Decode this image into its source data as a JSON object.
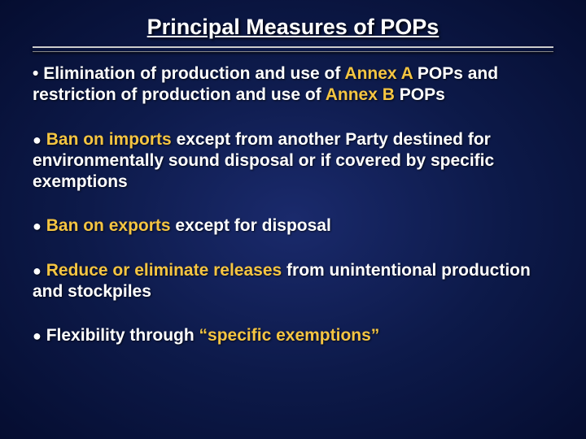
{
  "slide": {
    "title": "Principal Measures of POPs",
    "background_inner": "#1a2a6c",
    "background_mid": "#0d1a4a",
    "background_outer": "#050d30",
    "text_color": "#ffffff",
    "highlight_color": "#f5c542",
    "title_fontsize": 27,
    "body_fontsize": 21,
    "divider_color_top": "#cccccc",
    "divider_color_bottom": "#888888",
    "bullets": [
      {
        "lead_char": "•",
        "parts": [
          {
            "t": " Elimination of production and use of ",
            "hl": false
          },
          {
            "t": "Annex A",
            "hl": true
          },
          {
            "t": " POPs and restriction of production and use of ",
            "hl": false
          },
          {
            "t": "Annex B",
            "hl": true
          },
          {
            "t": " POPs",
            "hl": false
          }
        ]
      },
      {
        "lead_char": "●",
        "parts": [
          {
            "t": " ",
            "hl": false
          },
          {
            "t": "Ban on imports",
            "hl": true
          },
          {
            "t": " except from another Party destined for environmentally sound disposal or if covered by specific exemptions",
            "hl": false
          }
        ]
      },
      {
        "lead_char": "●",
        "parts": [
          {
            "t": " ",
            "hl": false
          },
          {
            "t": "Ban on exports",
            "hl": true
          },
          {
            "t": " except for disposal",
            "hl": false
          }
        ]
      },
      {
        "lead_char": "●",
        "parts": [
          {
            "t": " ",
            "hl": false
          },
          {
            "t": "Reduce or eliminate releases",
            "hl": true
          },
          {
            "t": " from unintentional production and stockpiles",
            "hl": false
          }
        ]
      },
      {
        "lead_char": "●",
        "parts": [
          {
            "t": " Flexibility through ",
            "hl": false
          },
          {
            "t": "“specific exemptions”",
            "hl": true
          }
        ]
      }
    ]
  }
}
